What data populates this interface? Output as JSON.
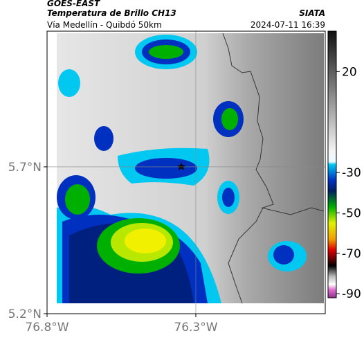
{
  "header": {
    "source": "GOES-EAST",
    "title": "Temperatura de Brillo CH13",
    "subtitle": "Vía Medellín - Quibdó 50km",
    "agency": "SIATA",
    "datetime": "2024-07-11 16:39"
  },
  "map": {
    "xlim": [
      -76.8,
      -75.865
    ],
    "ylim": [
      5.2,
      6.162
    ],
    "xticks": [
      {
        "value": -76.8,
        "label": "76.8°W"
      },
      {
        "value": -76.3,
        "label": "76.3°W"
      }
    ],
    "yticks": [
      {
        "value": 5.2,
        "label": "5.2°N"
      },
      {
        "value": 5.7,
        "label": "5.7°N"
      }
    ],
    "grid": true
  },
  "colorbar": {
    "lim": [
      40,
      -92
    ],
    "ticks": [
      20,
      -30,
      -50,
      -70,
      -90
    ]
  }
}
